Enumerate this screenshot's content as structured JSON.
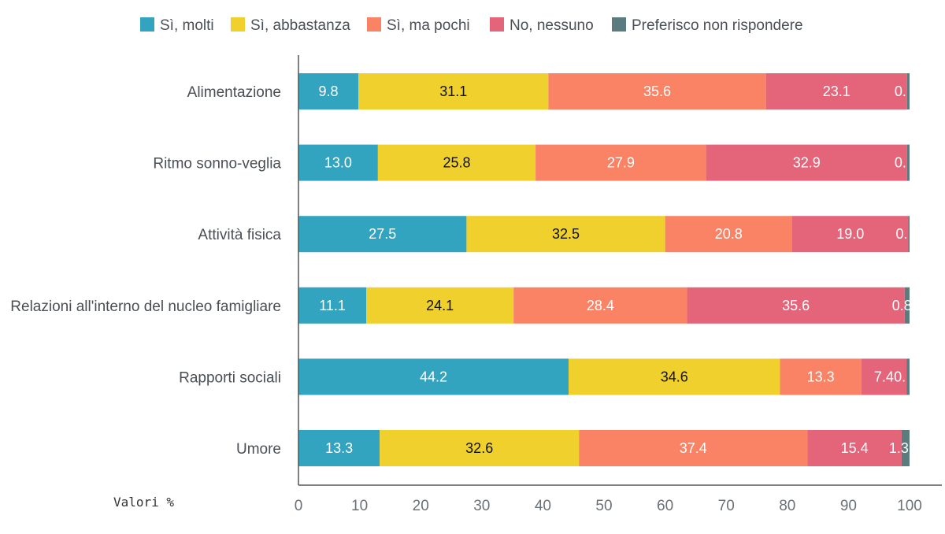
{
  "chart_data": {
    "type": "bar",
    "orientation": "horizontal",
    "stacked": true,
    "categories": [
      "Alimentazione",
      "Ritmo sonno-veglia",
      "Attività fisica",
      "Relazioni all'interno del nucleo famigliare",
      "Rapporti sociali",
      "Umore"
    ],
    "series": [
      {
        "name": "Sì, molti",
        "color": "#33a4bf",
        "label_color": "#ffffff",
        "values": [
          9.8,
          13.0,
          27.5,
          11.1,
          44.2,
          13.3
        ],
        "labels": [
          "9.8",
          "13.0",
          "27.5",
          "11.1",
          "44.2",
          "13.3"
        ]
      },
      {
        "name": "Sì, abbastanza",
        "color": "#efd02d",
        "label_color": "#111111",
        "values": [
          31.1,
          25.8,
          32.5,
          24.1,
          34.6,
          32.6
        ],
        "labels": [
          "31.1",
          "25.8",
          "32.5",
          "24.1",
          "34.6",
          "32.6"
        ]
      },
      {
        "name": "Sì, ma pochi",
        "color": "#fa8366",
        "label_color": "#ffffff",
        "values": [
          35.6,
          27.9,
          20.8,
          28.4,
          13.3,
          37.4
        ],
        "labels": [
          "35.6",
          "27.9",
          "20.8",
          "28.4",
          "13.3",
          "37.4"
        ]
      },
      {
        "name": "No, nessuno",
        "color": "#e4647a",
        "label_color": "#ffffff",
        "values": [
          23.1,
          32.9,
          19.0,
          35.6,
          7.4,
          15.4
        ],
        "labels": [
          "23.1",
          "32.9",
          "19.0",
          "35.6",
          "7.4",
          "15.4"
        ]
      },
      {
        "name": "Preferisco non rispondere",
        "color": "#5b7c7e",
        "label_color": "#ffffff",
        "values": [
          0.4,
          0.4,
          0.2,
          0.8,
          0.5,
          1.3
        ],
        "labels": [
          "0.",
          "0.",
          "0.",
          "0.8",
          "0.",
          "1.3"
        ]
      }
    ],
    "x_ticks": [
      "0",
      "10",
      "20",
      "30",
      "40",
      "50",
      "60",
      "70",
      "80",
      "90",
      "100"
    ],
    "xlim": [
      0,
      100
    ],
    "xlabel": "Valori %",
    "grid": false,
    "legend_position": "top"
  }
}
